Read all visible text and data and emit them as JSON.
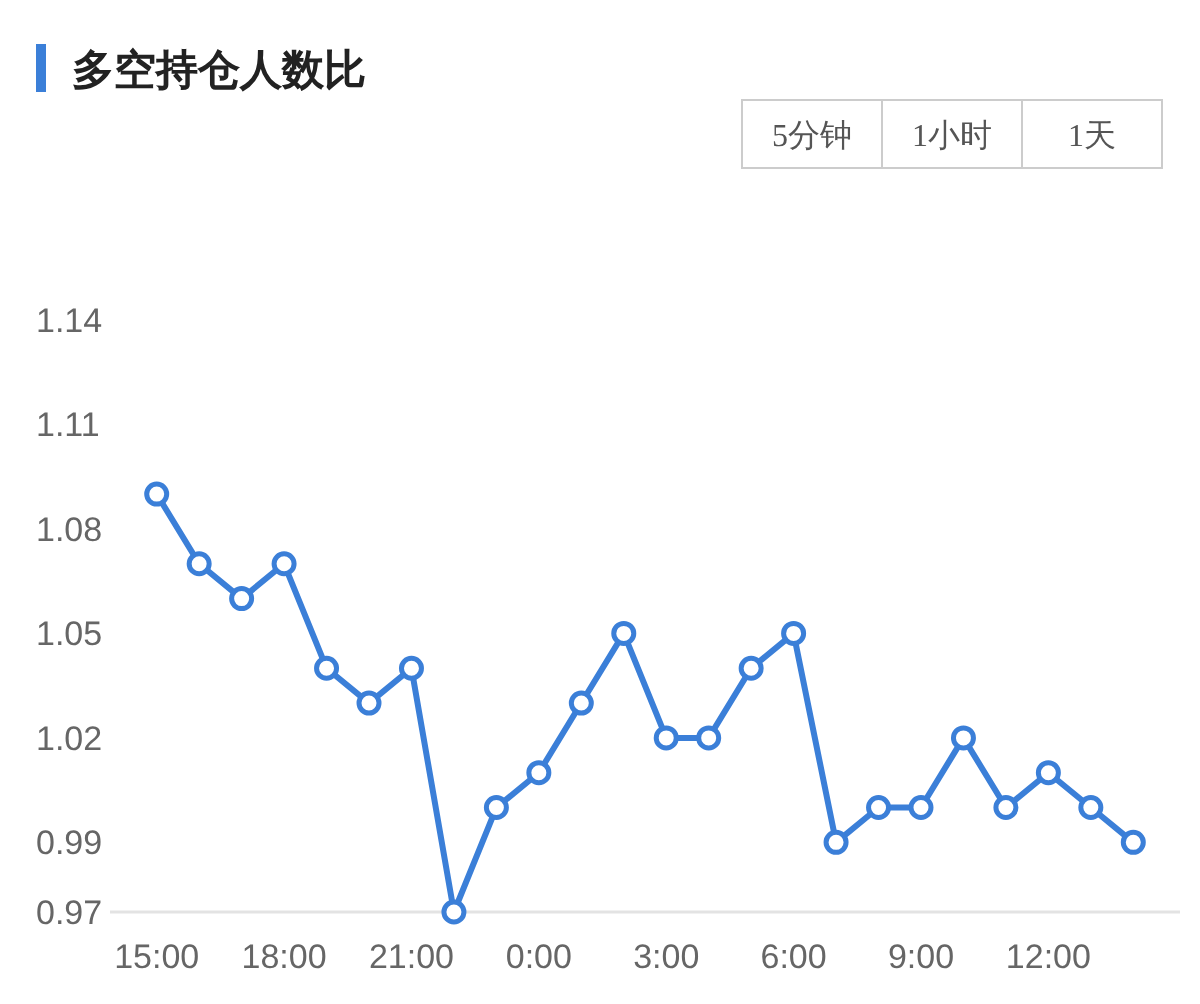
{
  "chart_data": {
    "type": "line",
    "title": "多空持仓人数比",
    "annotations": [
      "5分钟",
      "1小时",
      "1天"
    ],
    "categories": [
      "15:00",
      null,
      null,
      "18:00",
      null,
      null,
      "21:00",
      null,
      null,
      "0:00",
      null,
      null,
      "3:00",
      null,
      null,
      "6:00",
      null,
      null,
      "9:00",
      null,
      null,
      "12:00",
      null,
      null
    ],
    "series": [
      {
        "color": "#3b7fd8",
        "values": [
          1.09,
          1.07,
          1.06,
          1.07,
          1.04,
          1.03,
          1.04,
          0.97,
          1.0,
          1.01,
          1.03,
          1.05,
          1.02,
          1.02,
          1.04,
          1.05,
          0.99,
          1.0,
          1.0,
          1.02,
          1.0,
          1.01,
          1.0,
          0.99
        ]
      }
    ],
    "ylim": [
      0.97,
      1.14
    ],
    "yticks": [
      0.97,
      0.99,
      1.02,
      1.05,
      1.08,
      1.11,
      1.14
    ],
    "grid": false,
    "marker": "circle",
    "line_style": "solid"
  }
}
